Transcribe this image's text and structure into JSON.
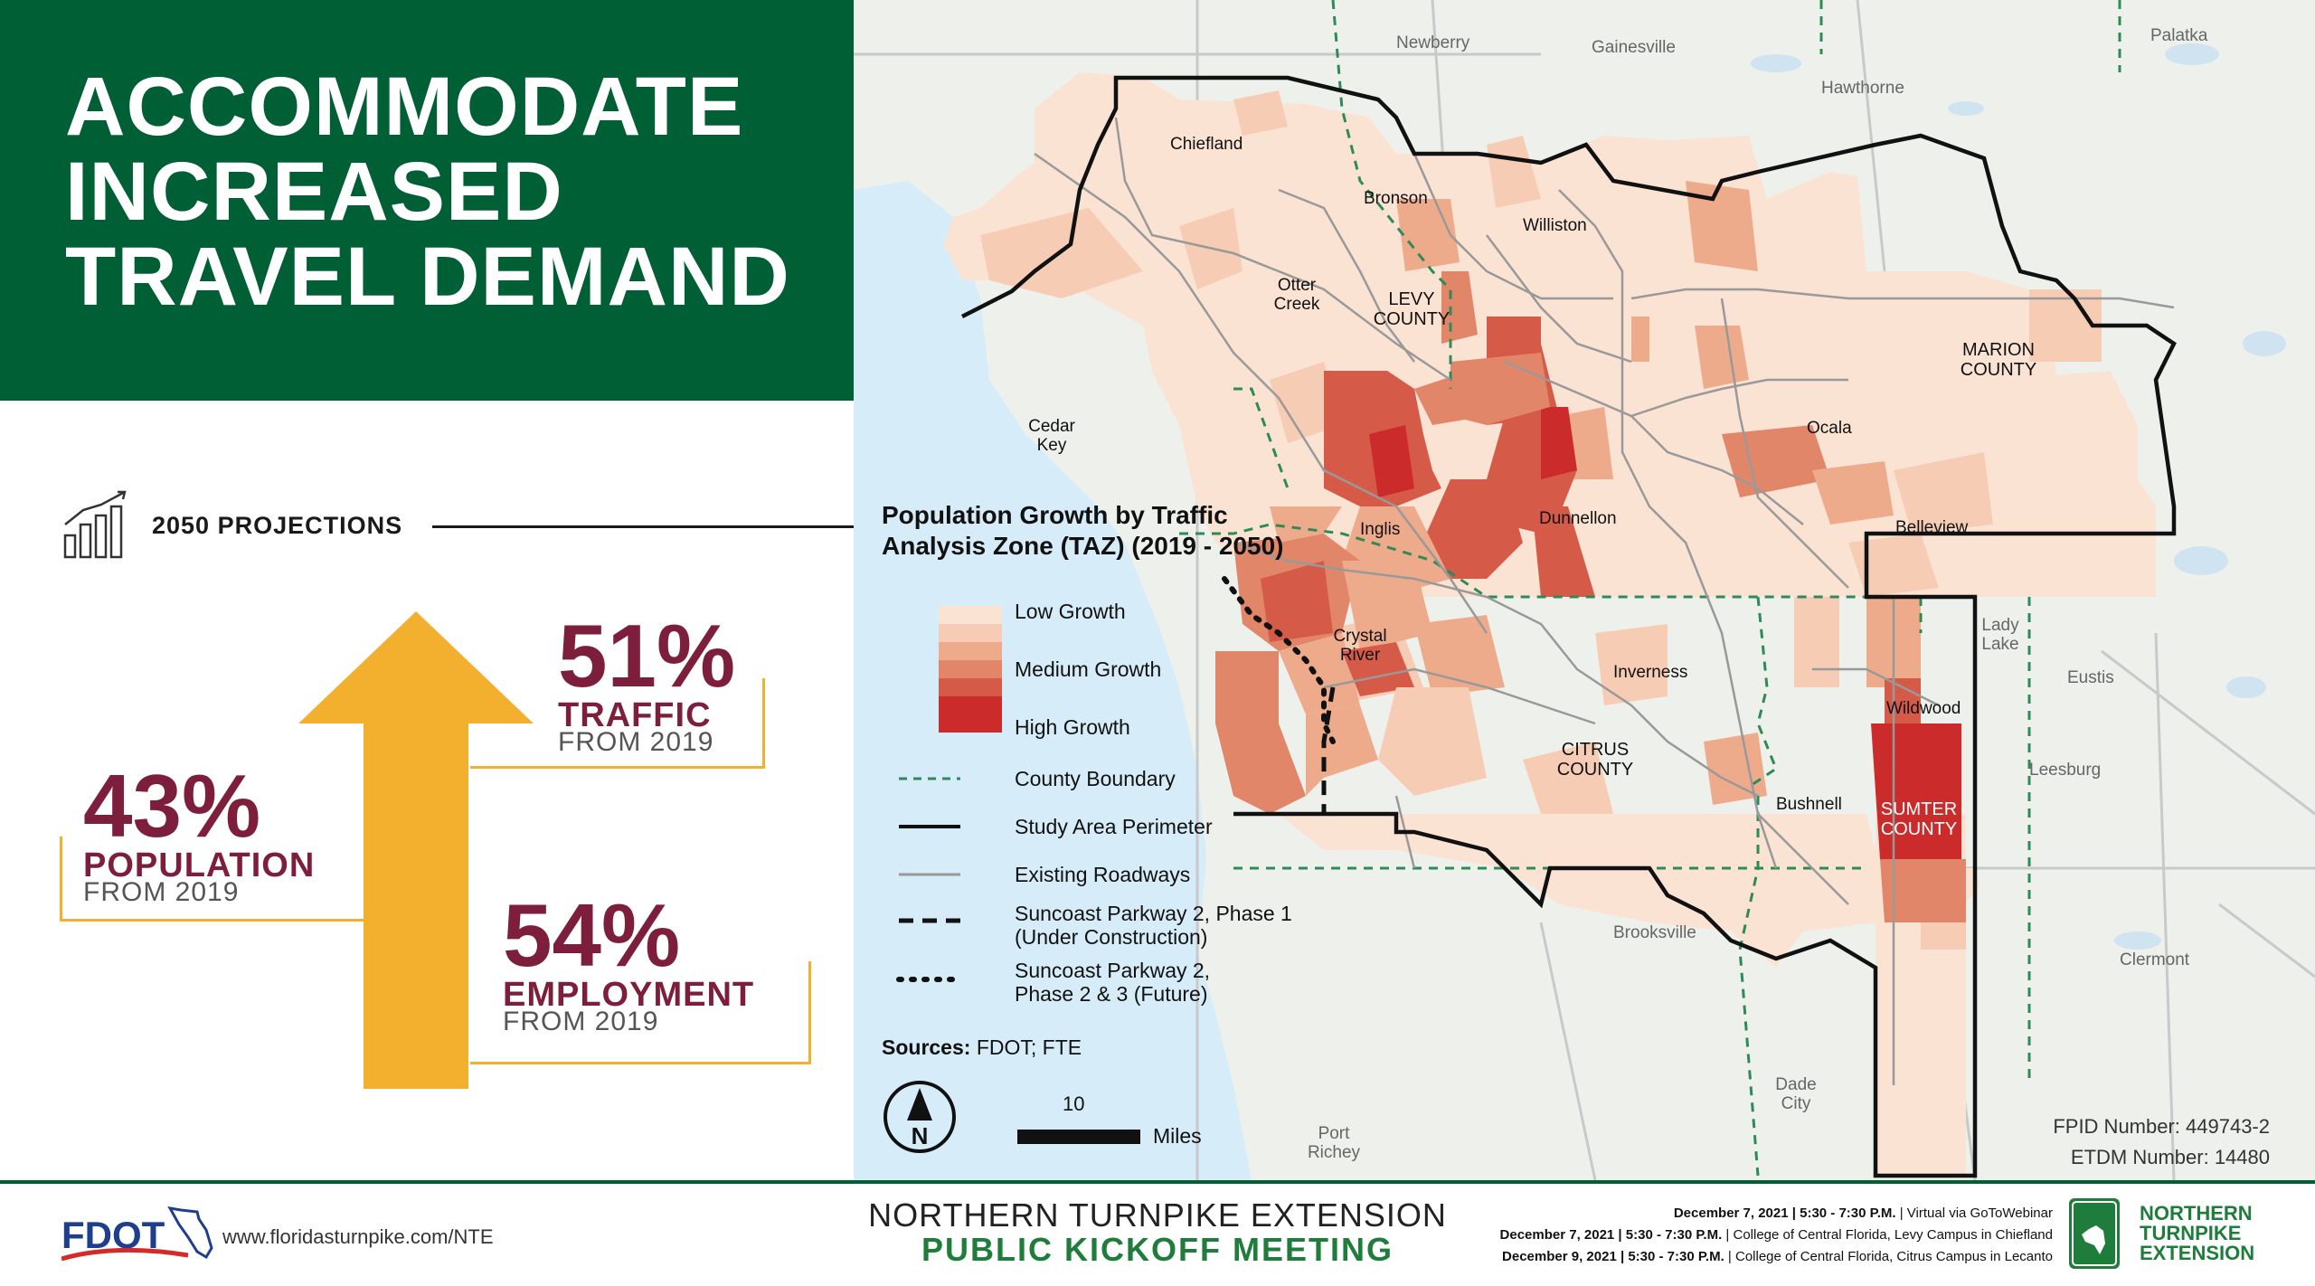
{
  "title": {
    "lines": [
      "ACCOMMODATE",
      "INCREASED",
      "TRAVEL DEMAND"
    ]
  },
  "projections": {
    "label": "2050 PROJECTIONS",
    "icon": "bar-chart-icon",
    "stats": {
      "traffic": {
        "percent": "51%",
        "label": "TRAFFIC",
        "from": "FROM 2019"
      },
      "population": {
        "percent": "43%",
        "label": "POPULATION",
        "from": "FROM 2019"
      },
      "employment": {
        "percent": "54%",
        "label": "EMPLOYMENT",
        "from": "FROM 2019"
      }
    }
  },
  "colors": {
    "banner_green": "#005f35",
    "accent_maroon": "#7d1f3c",
    "arrow_gold": "#f3b02e",
    "water": "#d6ecf8",
    "growth_scale": [
      "#fbe3d4",
      "#f6cdb4",
      "#eeab8c",
      "#e2866a",
      "#d65a48",
      "#cc2b2b"
    ]
  },
  "map": {
    "places": {
      "newberry": "Newberry",
      "gainesville": "Gainesville",
      "palatka": "Palatka",
      "hawthorne": "Hawthorne",
      "chiefland": "Chiefland",
      "bronson": "Bronson",
      "williston": "Williston",
      "otter_creek": "Otter Creek",
      "cedar_key": "Cedar Key",
      "ocala": "Ocala",
      "dunnellon": "Dunnellon",
      "inglis": "Inglis",
      "belleview": "Belleview",
      "crystal_river": "Crystal River",
      "inverness": "Inverness",
      "lady_lake": "Lady Lake",
      "eustis": "Eustis",
      "wildwood": "Wildwood",
      "leesburg": "Leesburg",
      "bushnell": "Bushnell",
      "brooksville": "Brooksville",
      "clermont": "Clermont",
      "dade_city": "Dade City",
      "port_richey": "Port Richey"
    },
    "counties": {
      "levy": "LEVY COUNTY",
      "marion": "MARION COUNTY",
      "citrus": "CITRUS COUNTY",
      "sumter": "SUMTER COUNTY"
    },
    "legend": {
      "title": "Population Growth by Traffic Analysis Zone (TAZ) (2019 - 2050)",
      "low": "Low Growth",
      "medium": "Medium Growth",
      "high": "High Growth",
      "county_boundary": "County Boundary",
      "study_area": "Study Area Perimeter",
      "roadways": "Existing Roadways",
      "phase1": "Suncoast Parkway 2, Phase 1 (Under Construction)",
      "phase23": "Suncoast Parkway 2, Phase 2 & 3 (Future)",
      "sources_label": "Sources:",
      "sources_value": "FDOT; FTE"
    },
    "scale": {
      "value": "10",
      "unit": "Miles"
    },
    "north_label": "N",
    "fpid": "FPID Number: 449743-2",
    "etdm": "ETDM Number: 14480"
  },
  "footer": {
    "logo_text": "FDOT",
    "url": "www.floridasturnpike.com/NTE",
    "project_name": "NORTHERN TURNPIKE EXTENSION",
    "meeting_name": "PUBLIC KICKOFF MEETING",
    "schedule": [
      {
        "date": "December 7, 2021 | 5:30 - 7:30 P.M.",
        "place": " | Virtual via GoToWebinar"
      },
      {
        "date": "December 7, 2021 | 5:30 - 7:30 P.M.",
        "place": " | College of Central Florida, Levy Campus in Chiefland"
      },
      {
        "date": "December 9, 2021 | 5:30 - 7:30 P.M.",
        "place": " | College of Central Florida, Citrus Campus in Lecanto"
      }
    ],
    "nte_logo": [
      "NORTHERN",
      "TURNPIKE",
      "EXTENSION"
    ]
  }
}
